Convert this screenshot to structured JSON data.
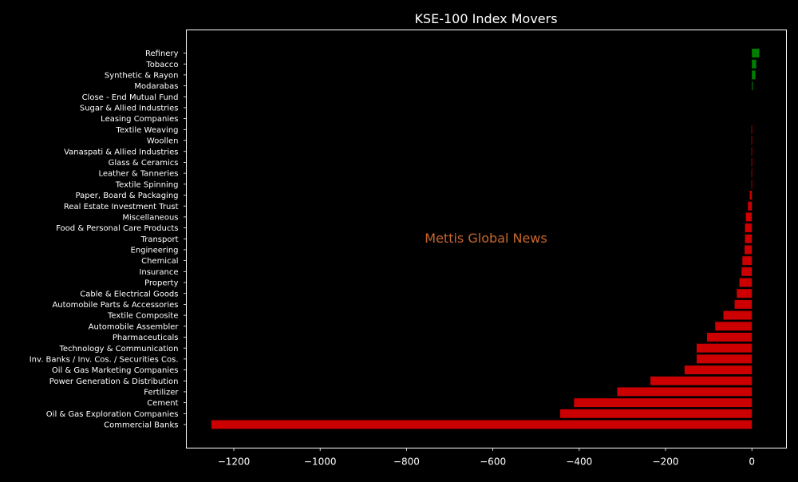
{
  "chart_data": {
    "type": "bar",
    "orientation": "horizontal",
    "title": "KSE-100 Index Movers",
    "watermark": "Mettis Global News",
    "xlabel": "",
    "ylabel": "",
    "xlim": [
      -1310,
      80
    ],
    "xticks": [
      -1200,
      -1000,
      -800,
      -600,
      -400,
      -200,
      0
    ],
    "xtick_labels": [
      "−1200",
      "−1000",
      "−800",
      "−600",
      "−400",
      "−200",
      "0"
    ],
    "grid": false,
    "positive_color": "#008000",
    "negative_color": "#cc0000",
    "background_color": "#000000",
    "watermark_color": "#c8672b",
    "categories": [
      "Refinery",
      "Tobacco",
      "Synthetic & Rayon",
      "Modarabas",
      "Close - End Mutual Fund",
      "Sugar & Allied Industries",
      "Leasing Companies",
      "Textile Weaving",
      "Woollen",
      "Vanaspati & Allied Industries",
      "Glass & Ceramics",
      "Leather & Tanneries",
      "Textile Spinning",
      "Paper, Board & Packaging",
      "Real Estate Investment Trust",
      "Miscellaneous",
      "Food & Personal Care Products",
      "Transport",
      "Engineering",
      "Chemical",
      "Insurance",
      "Property",
      "Cable & Electrical Goods",
      "Automobile Parts & Accessories",
      "Textile Composite",
      "Automobile Assembler",
      "Pharmaceuticals",
      "Technology & Communication",
      "Inv. Banks / Inv. Cos. / Securities Cos.",
      "Oil & Gas Marketing Companies",
      "Power Generation & Distribution",
      "Fertilizer",
      "Cement",
      "Oil & Gas Exploration Companies",
      "Commercial Banks"
    ],
    "values": [
      17,
      10,
      8,
      2,
      0,
      0,
      0,
      -1,
      -1,
      -1,
      -1,
      -1,
      -1,
      -5,
      -9,
      -14,
      -16,
      -16,
      -17,
      -22,
      -24,
      -29,
      -35,
      -40,
      -66,
      -85,
      -104,
      -128,
      -128,
      -156,
      -235,
      -312,
      -412,
      -444,
      -1252
    ]
  }
}
